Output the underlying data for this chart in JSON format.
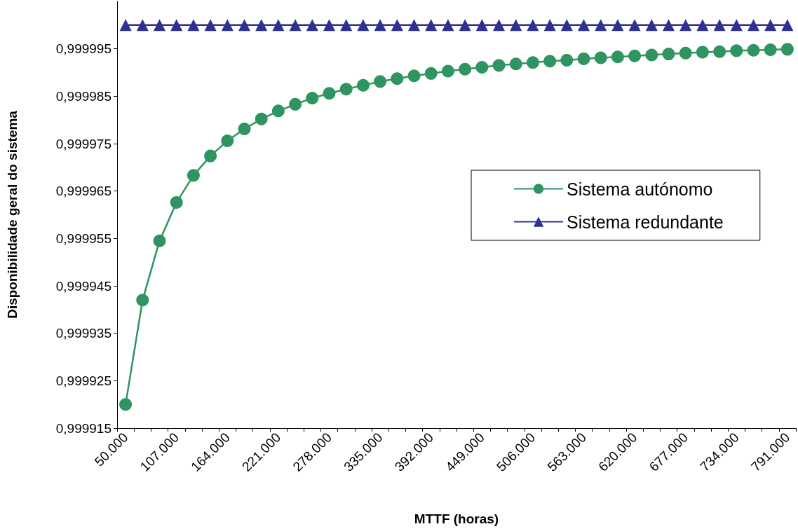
{
  "chart_data": {
    "type": "line",
    "xlabel": "MTTF (horas)",
    "ylabel": "Disponibilidade geral do sistema",
    "categories": [
      "50.000",
      null,
      null,
      "107.000",
      null,
      null,
      "164.000",
      null,
      null,
      "221.000",
      null,
      null,
      "278.000",
      null,
      null,
      "335.000",
      null,
      null,
      "392.000",
      null,
      null,
      "449.000",
      null,
      null,
      "506.000",
      null,
      null,
      "563.000",
      null,
      null,
      "620.000",
      null,
      null,
      "677.000",
      null,
      null,
      "734.000",
      null,
      null,
      "791.000"
    ],
    "series": [
      {
        "name": "Sistema autónomo",
        "color": "#2e9460",
        "marker": "circle",
        "values": [
          0.99992,
          0.999942,
          0.9999545,
          0.9999626,
          0.9999683,
          0.9999724,
          0.9999756,
          0.9999781,
          0.9999802,
          0.9999819,
          0.9999833,
          0.9999846,
          0.9999856,
          0.9999865,
          0.9999873,
          0.9999881,
          0.9999887,
          0.9999893,
          0.9999898,
          0.9999903,
          0.9999907,
          0.9999911,
          0.9999915,
          0.9999918,
          0.9999921,
          0.9999924,
          0.9999926,
          0.9999929,
          0.9999931,
          0.9999933,
          0.9999935,
          0.9999937,
          0.9999939,
          0.9999941,
          0.9999943,
          0.9999944,
          0.9999946,
          0.9999947,
          0.9999948,
          0.9999949
        ]
      },
      {
        "name": "Sistema redundante",
        "color": "#2e3192",
        "marker": "triangle",
        "values": [
          1.0,
          1.0,
          1.0,
          1.0,
          1.0,
          1.0,
          1.0,
          1.0,
          1.0,
          1.0,
          1.0,
          1.0,
          1.0,
          1.0,
          1.0,
          1.0,
          1.0,
          1.0,
          1.0,
          1.0,
          1.0,
          1.0,
          1.0,
          1.0,
          1.0,
          1.0,
          1.0,
          1.0,
          1.0,
          1.0,
          1.0,
          1.0,
          1.0,
          1.0,
          1.0,
          1.0,
          1.0,
          1.0,
          1.0,
          1.0
        ]
      }
    ],
    "ylim": [
      0.999915,
      1.000005
    ],
    "yticks": [
      {
        "value": 0.999915,
        "label": "0,999915"
      },
      {
        "value": 0.999925,
        "label": "0,999925"
      },
      {
        "value": 0.999935,
        "label": "0,999935"
      },
      {
        "value": 0.999945,
        "label": "0,999945"
      },
      {
        "value": 0.999955,
        "label": "0,999955"
      },
      {
        "value": 0.999965,
        "label": "0,999965"
      },
      {
        "value": 0.999975,
        "label": "0,999975"
      },
      {
        "value": 0.999985,
        "label": "0,999985"
      },
      {
        "value": 0.999995,
        "label": "0,999995"
      }
    ],
    "grid": false,
    "legend": "right"
  }
}
